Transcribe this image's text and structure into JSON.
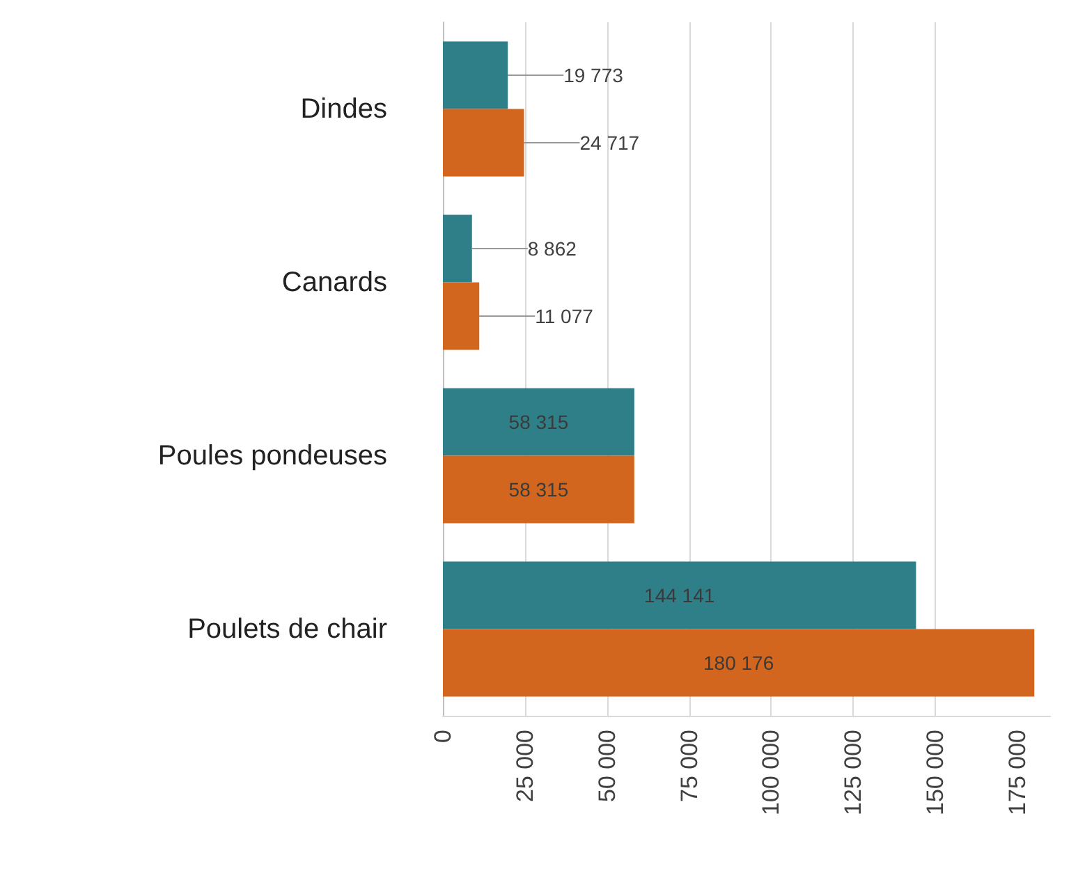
{
  "chart_data": {
    "type": "bar",
    "orientation": "horizontal",
    "categories": [
      "Dindes",
      "Canards",
      "Poules pondeuses",
      "Poulets de chair"
    ],
    "series": [
      {
        "color": "#2f7f89",
        "values": [
          19773,
          8862,
          58315,
          144141
        ],
        "value_labels": [
          "19 773",
          "8 862",
          "58 315",
          "144 141"
        ]
      },
      {
        "color": "#d2661f",
        "values": [
          24717,
          11077,
          58315,
          180176
        ],
        "value_labels": [
          "24 717",
          "11 077",
          "58 315",
          "180 176"
        ]
      }
    ],
    "xlim": [
      0,
      185000
    ],
    "xticks": [
      {
        "value": 0,
        "label": "0"
      },
      {
        "value": 25000,
        "label": "25 000"
      },
      {
        "value": 50000,
        "label": "50 000"
      },
      {
        "value": 75000,
        "label": "75 000"
      },
      {
        "value": 100000,
        "label": "100 000"
      },
      {
        "value": 125000,
        "label": "125 000"
      },
      {
        "value": 150000,
        "label": "150 000"
      },
      {
        "value": 175000,
        "label": "175 000"
      }
    ],
    "grid": "x"
  }
}
